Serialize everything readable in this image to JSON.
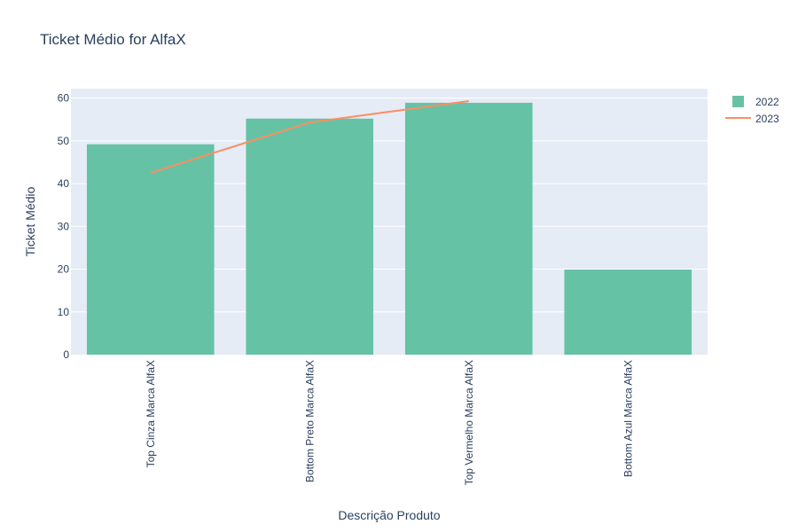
{
  "chart_data": {
    "type": "bar",
    "title": "Ticket Médio for AlfaX",
    "xlabel": "Descrição Produto",
    "ylabel": "Ticket Médio",
    "categories": [
      "Top Cinza Marca AlfaX",
      "Bottom Preto Marca AlfaX",
      "Top Vermelho Marca AlfaX",
      "Bottom Azul Marca AlfaX"
    ],
    "series": [
      {
        "name": "2022",
        "type": "bar",
        "color": "#66c2a5",
        "values": [
          49.2,
          55.2,
          58.9,
          19.9
        ]
      },
      {
        "name": "2023",
        "type": "line",
        "color": "#fc8d62",
        "values": [
          42.5,
          54.3,
          59.3,
          null
        ]
      }
    ],
    "ylim": [
      0,
      62.2
    ],
    "yticks": [
      0,
      10,
      20,
      30,
      40,
      50,
      60
    ],
    "grid": true,
    "legend": "top-right",
    "plot_bgcolor": "#e5ecf6"
  }
}
